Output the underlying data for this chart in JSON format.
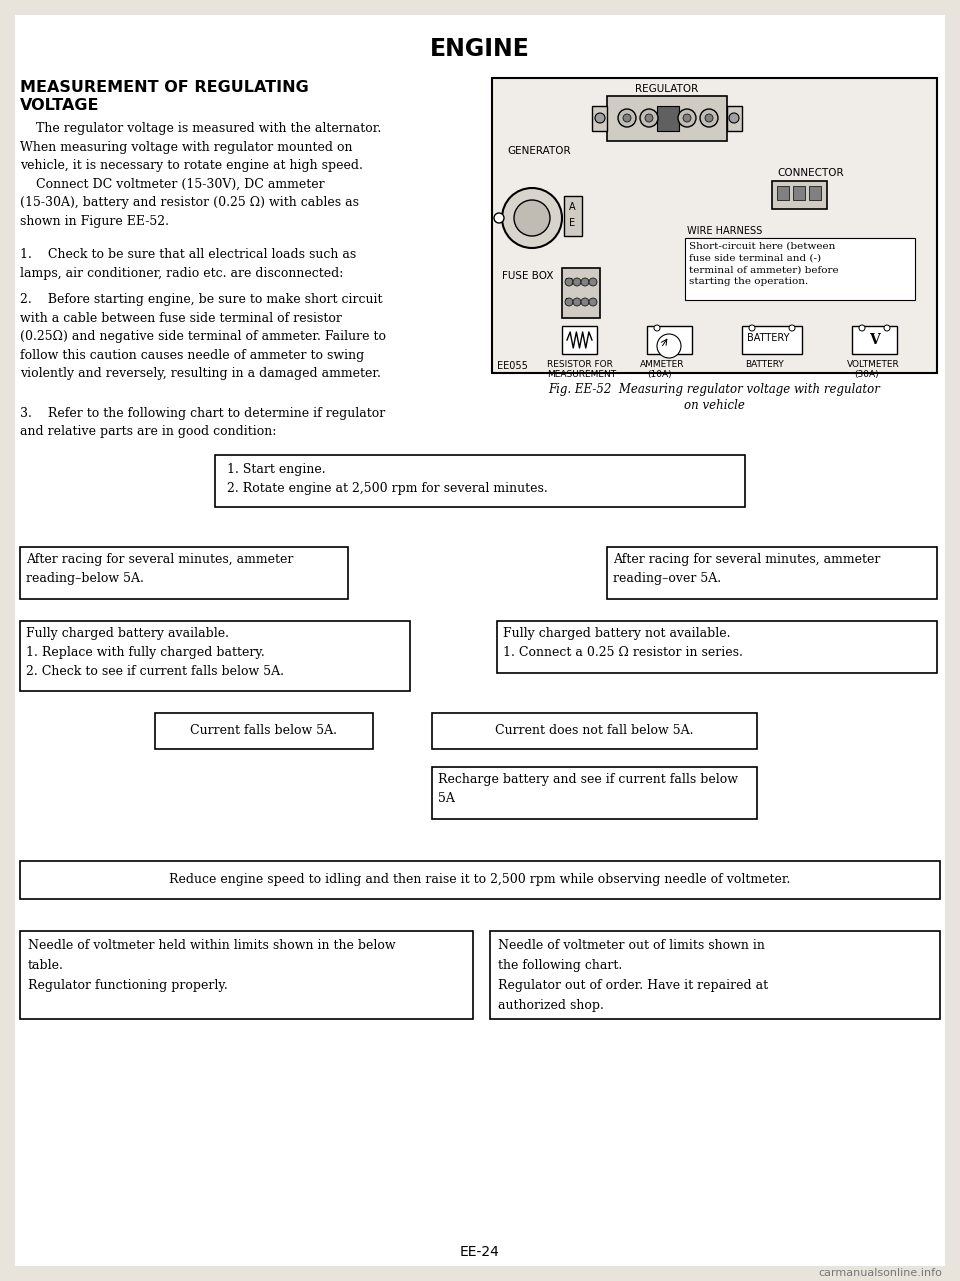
{
  "title": "ENGINE",
  "section_title_line1": "MEASUREMENT OF REGULATING",
  "section_title_line2": "VOLTAGE",
  "para_text": "    The regulator voltage is measured with the alternator.\nWhen measuring voltage with regulator mounted on\nvehicle, it is necessary to rotate engine at high speed.\n    Connect DC voltmeter (15-30V), DC ammeter\n(15-30A), battery and resistor (0.25 Ω) with cables as\nshown in Figure EE-52.",
  "item1_text": "1.    Check to be sure that all electrical loads such as\nlamps, air conditioner, radio etc. are disconnected:",
  "item2_text": "2.    Before starting engine, be sure to make short circuit\nwith a cable between fuse side terminal of resistor\n(0.25Ω) and negative side terminal of ammeter. Failure to\nfollow this caution causes needle of ammeter to swing\nviolently and reversely, resulting in a damaged ammeter.",
  "item3_text": "3.    Refer to the following chart to determine if regulator\nand relative parts are in good condition:",
  "fig_caption_line1": "Fig. EE-52  Measuring regulator voltage with regulator",
  "fig_caption_line2": "on vehicle",
  "page_num": "EE-24",
  "watermark": "carmanualsonline.info",
  "bg_color": "#e8e4dc",
  "box_bg": "#ffffff",
  "diag_bg": "#d8d4cc"
}
